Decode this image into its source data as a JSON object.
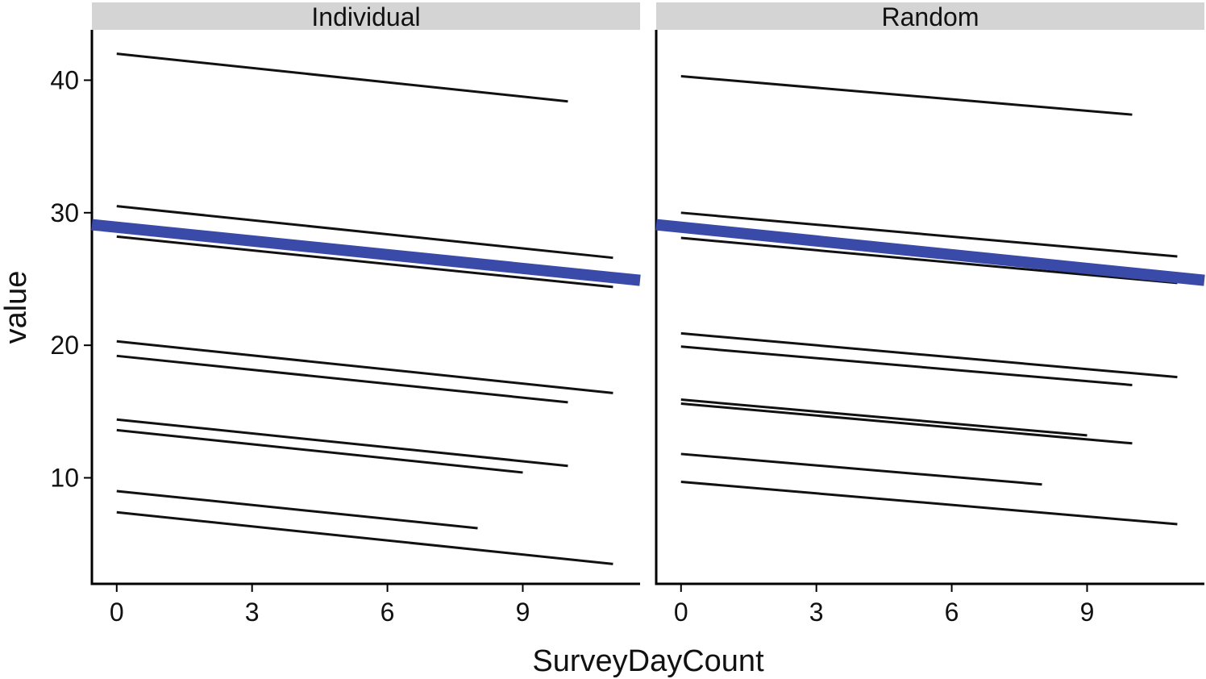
{
  "chart_data": {
    "type": "line",
    "xlabel": "SurveyDayCount",
    "ylabel": "value",
    "x_ticks": [
      0,
      3,
      6,
      9
    ],
    "y_ticks": [
      10,
      20,
      30,
      40
    ],
    "xlim": [
      -0.55,
      11.6
    ],
    "ylim": [
      2,
      43.8
    ],
    "grid": false,
    "colors": {
      "subject": "#111111",
      "mean": "#3a4aa8"
    },
    "panels": [
      {
        "label": "Individual",
        "mean_line": {
          "x": [
            -0.55,
            11.6
          ],
          "y": [
            29.1,
            24.9
          ]
        },
        "series": [
          {
            "x": [
              0,
              10
            ],
            "y": [
              42.0,
              38.4
            ]
          },
          {
            "x": [
              0,
              11
            ],
            "y": [
              30.5,
              26.6
            ]
          },
          {
            "x": [
              0,
              11
            ],
            "y": [
              28.2,
              24.4
            ]
          },
          {
            "x": [
              0,
              11
            ],
            "y": [
              20.3,
              16.4
            ]
          },
          {
            "x": [
              0,
              10
            ],
            "y": [
              19.2,
              15.7
            ]
          },
          {
            "x": [
              0,
              10
            ],
            "y": [
              14.4,
              10.9
            ]
          },
          {
            "x": [
              0,
              9
            ],
            "y": [
              13.6,
              10.4
            ]
          },
          {
            "x": [
              0,
              8
            ],
            "y": [
              9.0,
              6.2
            ]
          },
          {
            "x": [
              0,
              11
            ],
            "y": [
              7.4,
              3.5
            ]
          }
        ]
      },
      {
        "label": "Random",
        "mean_line": {
          "x": [
            -0.55,
            11.6
          ],
          "y": [
            29.1,
            24.9
          ]
        },
        "series": [
          {
            "x": [
              0,
              10
            ],
            "y": [
              40.3,
              37.4
            ]
          },
          {
            "x": [
              0,
              11
            ],
            "y": [
              30.0,
              26.7
            ]
          },
          {
            "x": [
              0,
              11
            ],
            "y": [
              28.1,
              24.7
            ]
          },
          {
            "x": [
              0,
              11
            ],
            "y": [
              20.9,
              17.6
            ]
          },
          {
            "x": [
              0,
              10
            ],
            "y": [
              19.9,
              17.0
            ]
          },
          {
            "x": [
              0,
              9
            ],
            "y": [
              15.9,
              13.2
            ]
          },
          {
            "x": [
              0,
              10
            ],
            "y": [
              15.6,
              12.6
            ]
          },
          {
            "x": [
              0,
              8
            ],
            "y": [
              11.8,
              9.5
            ]
          },
          {
            "x": [
              0,
              11
            ],
            "y": [
              9.7,
              6.5
            ]
          }
        ]
      }
    ]
  }
}
